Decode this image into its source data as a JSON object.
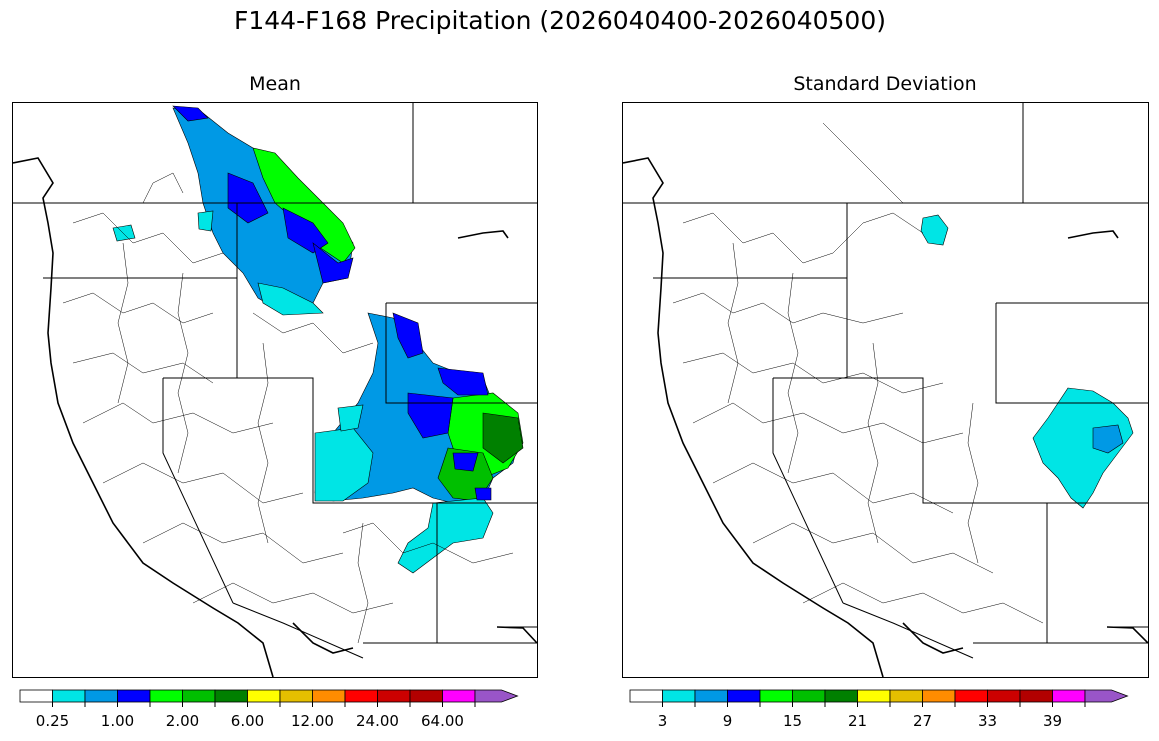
{
  "figure": {
    "title": "F144-F168 Precipitation (2026040400-2026040500)"
  },
  "panels": [
    {
      "title": "Mean",
      "colorbar": {
        "colors": [
          "#ffffff",
          "#00e5e5",
          "#0099e5",
          "#0000ff",
          "#00ff00",
          "#00bf00",
          "#008000",
          "#ffff00",
          "#e5bf00",
          "#ff8c00",
          "#ff0000",
          "#cc0000",
          "#b20000",
          "#ff00ff",
          "#9955c8"
        ],
        "tick_labels": [
          "0.25",
          "1.00",
          "2.00",
          "6.00",
          "12.00",
          "24.00",
          "64.00"
        ]
      }
    },
    {
      "title": "Standard Deviation",
      "colorbar": {
        "colors": [
          "#ffffff",
          "#00e5e5",
          "#0099e5",
          "#0000ff",
          "#00ff00",
          "#00bf00",
          "#008000",
          "#ffff00",
          "#e5bf00",
          "#ff8c00",
          "#ff0000",
          "#cc0000",
          "#b20000",
          "#ff00ff",
          "#9955c8"
        ],
        "tick_labels": [
          "3",
          "9",
          "15",
          "21",
          "27",
          "33",
          "39"
        ]
      }
    }
  ]
}
